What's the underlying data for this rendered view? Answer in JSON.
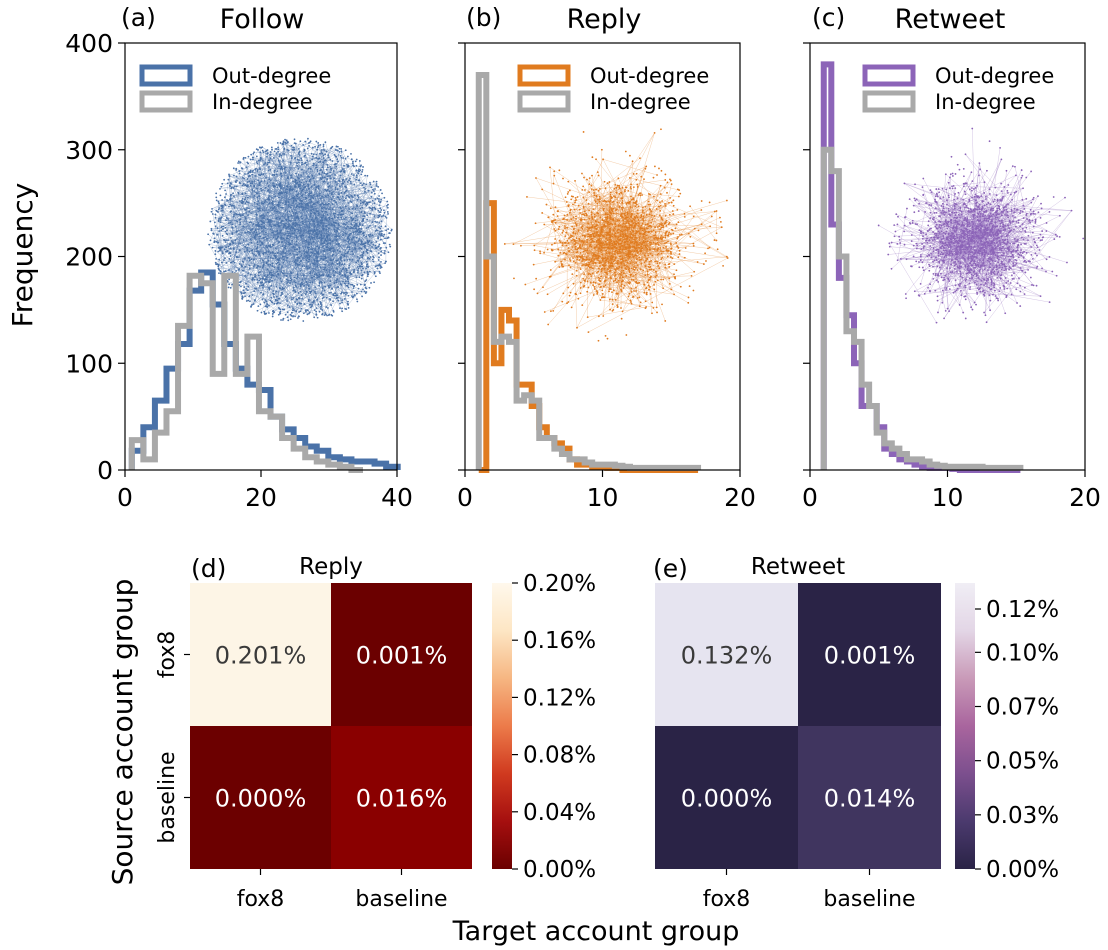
{
  "y_label": "Frequency",
  "legend": {
    "out": "Out-degree",
    "in": "In-degree"
  },
  "colors": {
    "follow": "#4a72a8",
    "reply": "#e07b1f",
    "retweet": "#8c64b8",
    "in_degree": "#a9a9a9"
  },
  "chart_data": [
    {
      "type": "histogram",
      "panel": "(a)",
      "title": "Follow",
      "color_key": "follow",
      "xlim": [
        0,
        40
      ],
      "ylim": [
        0,
        400
      ],
      "xticks": [
        0,
        20,
        40
      ],
      "yticks": [
        0,
        100,
        200,
        300,
        400
      ],
      "show_yticklabels": true,
      "bin_width": 1.7,
      "series": [
        {
          "name": "Out-degree",
          "x_start": 1.0,
          "values": [
            18,
            40,
            65,
            95,
            118,
            168,
            185,
            155,
            118,
            95,
            80,
            75,
            50,
            38,
            30,
            22,
            18,
            12,
            10,
            8,
            8,
            6,
            3
          ]
        },
        {
          "name": "In-degree",
          "x_start": 1.0,
          "values": [
            28,
            10,
            35,
            55,
            135,
            182,
            175,
            90,
            182,
            90,
            125,
            55,
            50,
            30,
            20,
            12,
            8,
            5,
            3,
            0
          ]
        }
      ]
    },
    {
      "type": "histogram",
      "panel": "(b)",
      "title": "Reply",
      "color_key": "reply",
      "xlim": [
        0,
        20
      ],
      "ylim": [
        0,
        400
      ],
      "xticks": [
        0,
        10,
        20
      ],
      "yticks": [
        0,
        100,
        200,
        300,
        400
      ],
      "show_yticklabels": false,
      "bin_width": 0.55,
      "series": [
        {
          "name": "Out-degree",
          "x_start": 1.0,
          "values": [
            0,
            250,
            100,
            150,
            140,
            80,
            80,
            60,
            40,
            30,
            25,
            20,
            10,
            5,
            5,
            3,
            3,
            2,
            2,
            0,
            0,
            0,
            0,
            0,
            0,
            0,
            0,
            0,
            0
          ]
        },
        {
          "name": "In-degree",
          "x_start": 1.0,
          "values": [
            370,
            200,
            120,
            125,
            120,
            65,
            70,
            65,
            30,
            30,
            20,
            15,
            10,
            10,
            7,
            5,
            5,
            5,
            4,
            3,
            2,
            2,
            2,
            2,
            2,
            2,
            2,
            2,
            2
          ]
        }
      ]
    },
    {
      "type": "histogram",
      "panel": "(c)",
      "title": "Retweet",
      "color_key": "retweet",
      "xlim": [
        0,
        20
      ],
      "ylim": [
        0,
        400
      ],
      "xticks": [
        0,
        10,
        20
      ],
      "yticks": [
        0,
        100,
        200,
        300,
        400
      ],
      "show_yticklabels": false,
      "bin_width": 0.55,
      "series": [
        {
          "name": "Out-degree",
          "x_start": 1.0,
          "values": [
            380,
            230,
            180,
            145,
            100,
            60,
            60,
            40,
            20,
            15,
            10,
            8,
            5,
            3,
            2,
            2,
            2,
            1,
            0,
            0,
            0,
            0,
            0,
            0,
            0,
            0
          ]
        },
        {
          "name": "In-degree",
          "x_start": 1.0,
          "values": [
            300,
            280,
            200,
            130,
            120,
            80,
            60,
            35,
            25,
            20,
            15,
            10,
            10,
            8,
            5,
            4,
            3,
            3,
            3,
            3,
            3,
            2,
            2,
            2,
            2,
            2
          ]
        }
      ]
    },
    {
      "type": "heatmap",
      "panel": "(d)",
      "title": "Reply",
      "rows": [
        "fox8",
        "baseline"
      ],
      "cols": [
        "fox8",
        "baseline"
      ],
      "values": [
        [
          0.201,
          0.001
        ],
        [
          0.0,
          0.016
        ]
      ],
      "labels": [
        [
          "0.201%",
          "0.001%"
        ],
        [
          "0.000%",
          "0.016%"
        ]
      ],
      "colors": [
        [
          "#fdf5e6",
          "#6b0000"
        ],
        [
          "#6c0000",
          "#8a0000"
        ]
      ],
      "text_colors": [
        [
          "#3a3a3a",
          "#ffffff"
        ],
        [
          "#ffffff",
          "#ffffff"
        ]
      ],
      "colorbar": {
        "min": 0,
        "max": 0.2,
        "ticks": [
          0.0,
          0.04,
          0.08,
          0.12,
          0.16,
          0.2
        ],
        "tick_labels": [
          "0.00%",
          "0.04%",
          "0.08%",
          "0.12%",
          "0.16%",
          "0.20%"
        ],
        "gradient": [
          "#6b0000",
          "#a50f0f",
          "#d03a1f",
          "#ec7b4a",
          "#f6b682",
          "#fde6c4",
          "#fff8ec"
        ]
      }
    },
    {
      "type": "heatmap",
      "panel": "(e)",
      "title": "Retweet",
      "rows": [
        "fox8",
        "baseline"
      ],
      "cols": [
        "fox8",
        "baseline"
      ],
      "values": [
        [
          0.132,
          0.001
        ],
        [
          0.0,
          0.014
        ]
      ],
      "labels": [
        [
          "0.132%",
          "0.001%"
        ],
        [
          "0.000%",
          "0.014%"
        ]
      ],
      "colors": [
        [
          "#e6e4f0",
          "#2a2346"
        ],
        [
          "#2a2346",
          "#40355f"
        ]
      ],
      "text_colors": [
        [
          "#3a3a3a",
          "#ffffff"
        ],
        [
          "#ffffff",
          "#ffffff"
        ]
      ],
      "colorbar": {
        "min": 0,
        "max": 0.132,
        "ticks": [
          0.0,
          0.025,
          0.05,
          0.075,
          0.1,
          0.12
        ],
        "tick_labels": [
          "0.00%",
          "0.03%",
          "0.05%",
          "0.07%",
          "0.10%",
          "0.12%"
        ],
        "gradient": [
          "#2a2346",
          "#4b3a6e",
          "#7c4f8e",
          "#a9659e",
          "#c99ab8",
          "#e3d6e6",
          "#f0eef5"
        ]
      }
    }
  ],
  "heatmap_labels": {
    "source": "Source account group",
    "target": "Target account group"
  }
}
